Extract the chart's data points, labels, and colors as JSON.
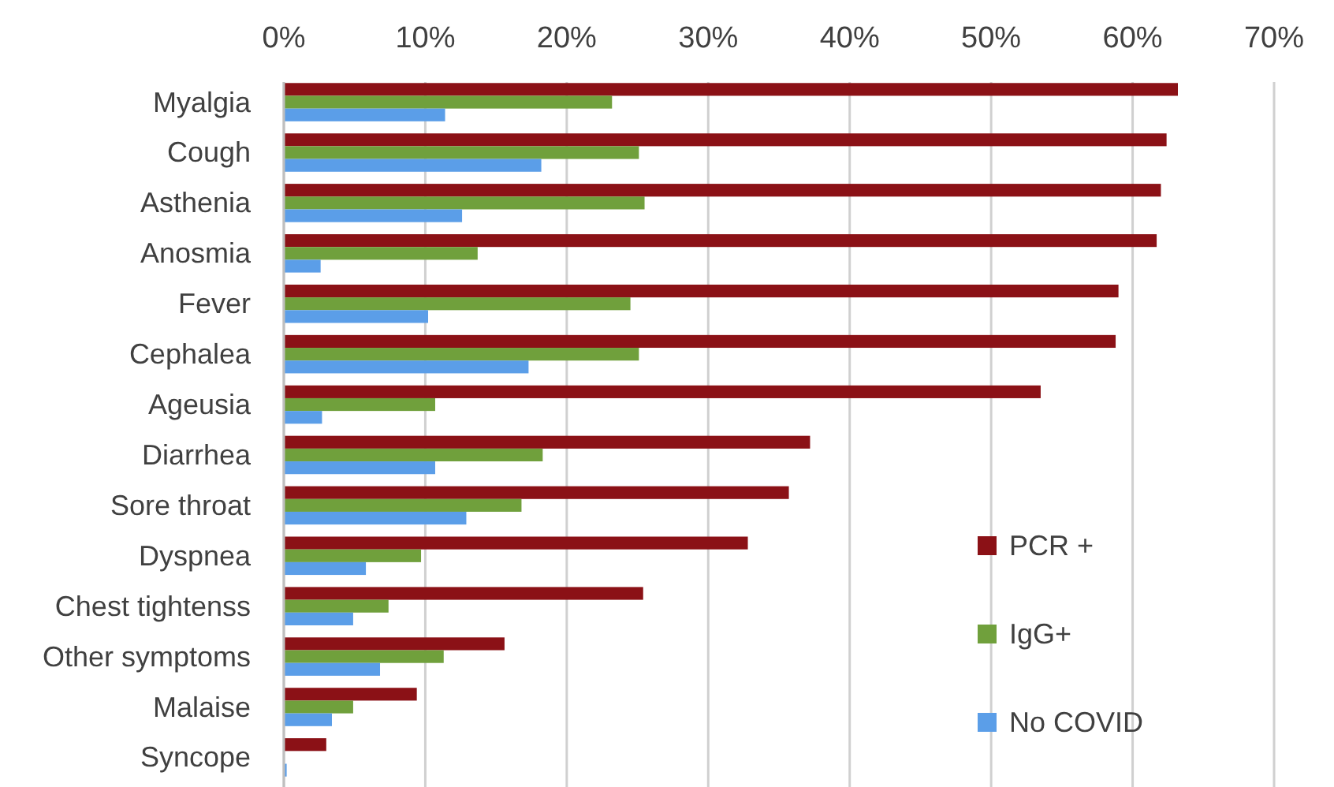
{
  "chart_data": {
    "type": "bar",
    "orientation": "horizontal",
    "categories": [
      "Myalgia",
      "Cough",
      "Asthenia",
      "Anosmia",
      "Fever",
      "Cephalea",
      "Ageusia",
      "Diarrhea",
      "Sore throat",
      "Dyspnea",
      "Chest tightenss",
      "Other symptoms",
      "Malaise",
      "Syncope"
    ],
    "series": [
      {
        "name": "PCR +",
        "color": "#8b1116",
        "values": [
          63.2,
          62.4,
          62.0,
          61.7,
          59.0,
          58.8,
          53.5,
          37.2,
          35.7,
          32.8,
          25.4,
          15.6,
          9.4,
          3.0
        ]
      },
      {
        "name": "IgG+",
        "color": "#70a03c",
        "values": [
          23.2,
          25.1,
          25.5,
          13.7,
          24.5,
          25.1,
          10.7,
          18.3,
          16.8,
          9.7,
          7.4,
          11.3,
          4.9,
          0
        ]
      },
      {
        "name": "No COVID",
        "color": "#5b9ee8",
        "values": [
          11.4,
          18.2,
          12.6,
          2.6,
          10.2,
          17.3,
          2.7,
          10.7,
          12.9,
          5.8,
          4.9,
          6.8,
          3.4,
          0.2
        ]
      }
    ],
    "xlim": [
      0,
      70
    ],
    "xticks": [
      {
        "value": 0,
        "label": "0%"
      },
      {
        "value": 10,
        "label": "10%"
      },
      {
        "value": 20,
        "label": "20%"
      },
      {
        "value": 30,
        "label": "30%"
      },
      {
        "value": 40,
        "label": "40%"
      },
      {
        "value": 50,
        "label": "50%"
      },
      {
        "value": 60,
        "label": "60%"
      },
      {
        "value": 70,
        "label": "70%"
      }
    ],
    "grid": "x",
    "legend": "right"
  }
}
